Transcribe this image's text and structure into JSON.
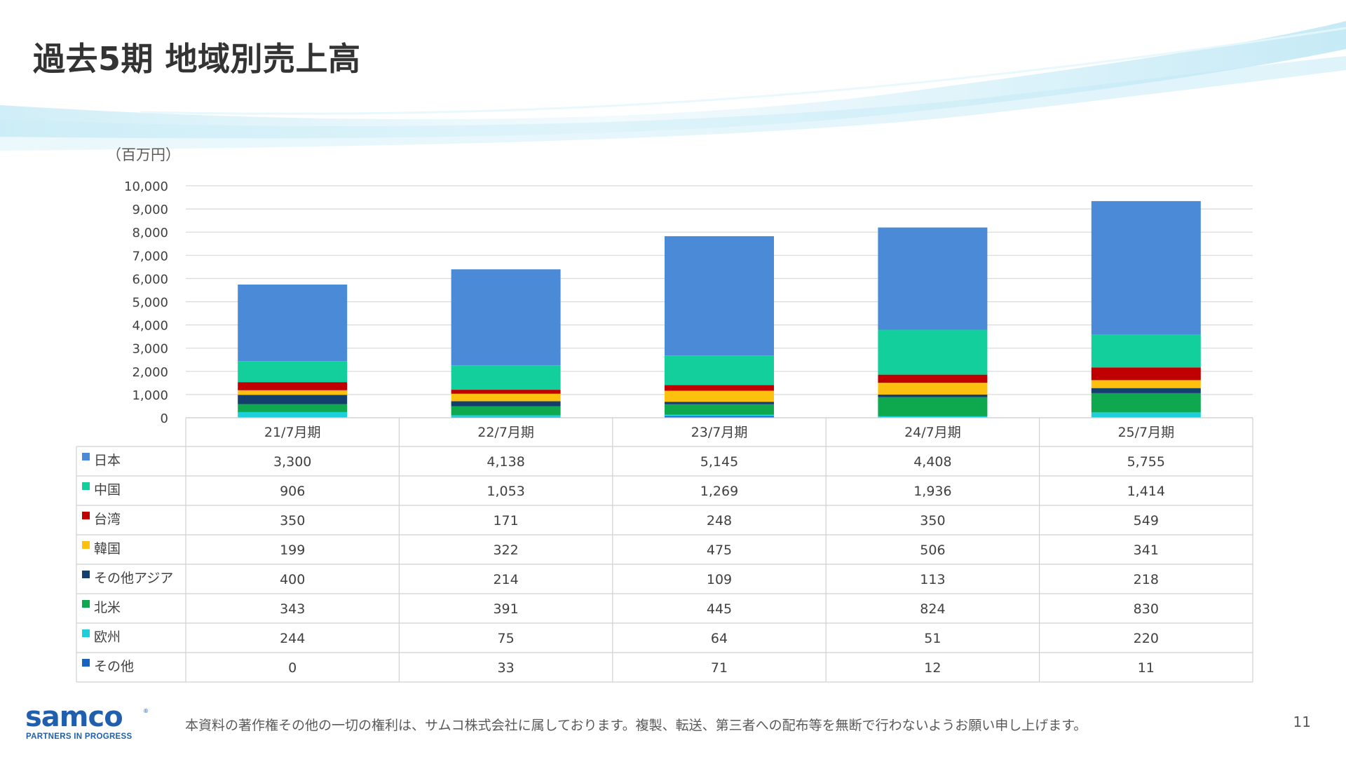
{
  "title": "過去5期 地域別売上高",
  "footer": "本資料の著作権その他の一切の権利は、サムコ株式会社に属しております。複製、転送、第三者への配布等を無断で行わないようお願い申し上げます。",
  "page_number": "11",
  "logo": {
    "wordmark": "samco",
    "tagline": "PARTNERS IN PROGRESS",
    "mark": "®"
  },
  "chart_data": {
    "type": "bar",
    "stacked": true,
    "unit_label": "（百万円）",
    "categories": [
      "21/7月期",
      "22/7月期",
      "23/7月期",
      "24/7月期",
      "25/7月期"
    ],
    "ylim": [
      0,
      10000
    ],
    "yticks": [
      "0",
      "1,000",
      "2,000",
      "3,000",
      "4,000",
      "5,000",
      "6,000",
      "7,000",
      "8,000",
      "9,000",
      "10,000"
    ],
    "grid": true,
    "legend": "data-table",
    "series": [
      {
        "name": "その他",
        "color": "#1565c0",
        "values": [
          0,
          33,
          71,
          12,
          11
        ],
        "labels": [
          "0",
          "33",
          "71",
          "12",
          "11"
        ]
      },
      {
        "name": "欧州",
        "color": "#1ccfd8",
        "values": [
          244,
          75,
          64,
          51,
          220
        ],
        "labels": [
          "244",
          "75",
          "64",
          "51",
          "220"
        ]
      },
      {
        "name": "北米",
        "color": "#0ea84f",
        "values": [
          343,
          391,
          445,
          824,
          830
        ],
        "labels": [
          "343",
          "391",
          "445",
          "824",
          "830"
        ]
      },
      {
        "name": "その他アジア",
        "color": "#123f6b",
        "values": [
          400,
          214,
          109,
          113,
          218
        ],
        "labels": [
          "400",
          "214",
          "109",
          "113",
          "218"
        ]
      },
      {
        "name": "韓国",
        "color": "#fdc00f",
        "values": [
          199,
          322,
          475,
          506,
          341
        ],
        "labels": [
          "199",
          "322",
          "475",
          "506",
          "341"
        ]
      },
      {
        "name": "台湾",
        "color": "#c00000",
        "values": [
          350,
          171,
          248,
          350,
          549
        ],
        "labels": [
          "350",
          "171",
          "248",
          "350",
          "549"
        ]
      },
      {
        "name": "中国",
        "color": "#13cf9b",
        "values": [
          906,
          1053,
          1269,
          1936,
          1414
        ],
        "labels": [
          "906",
          "1,053",
          "1,269",
          "1,936",
          "1,414"
        ]
      },
      {
        "name": "日本",
        "color": "#4a8ad6",
        "values": [
          3300,
          4138,
          5145,
          4408,
          5755
        ],
        "labels": [
          "3,300",
          "4,138",
          "5,145",
          "4,408",
          "5,755"
        ]
      }
    ]
  }
}
